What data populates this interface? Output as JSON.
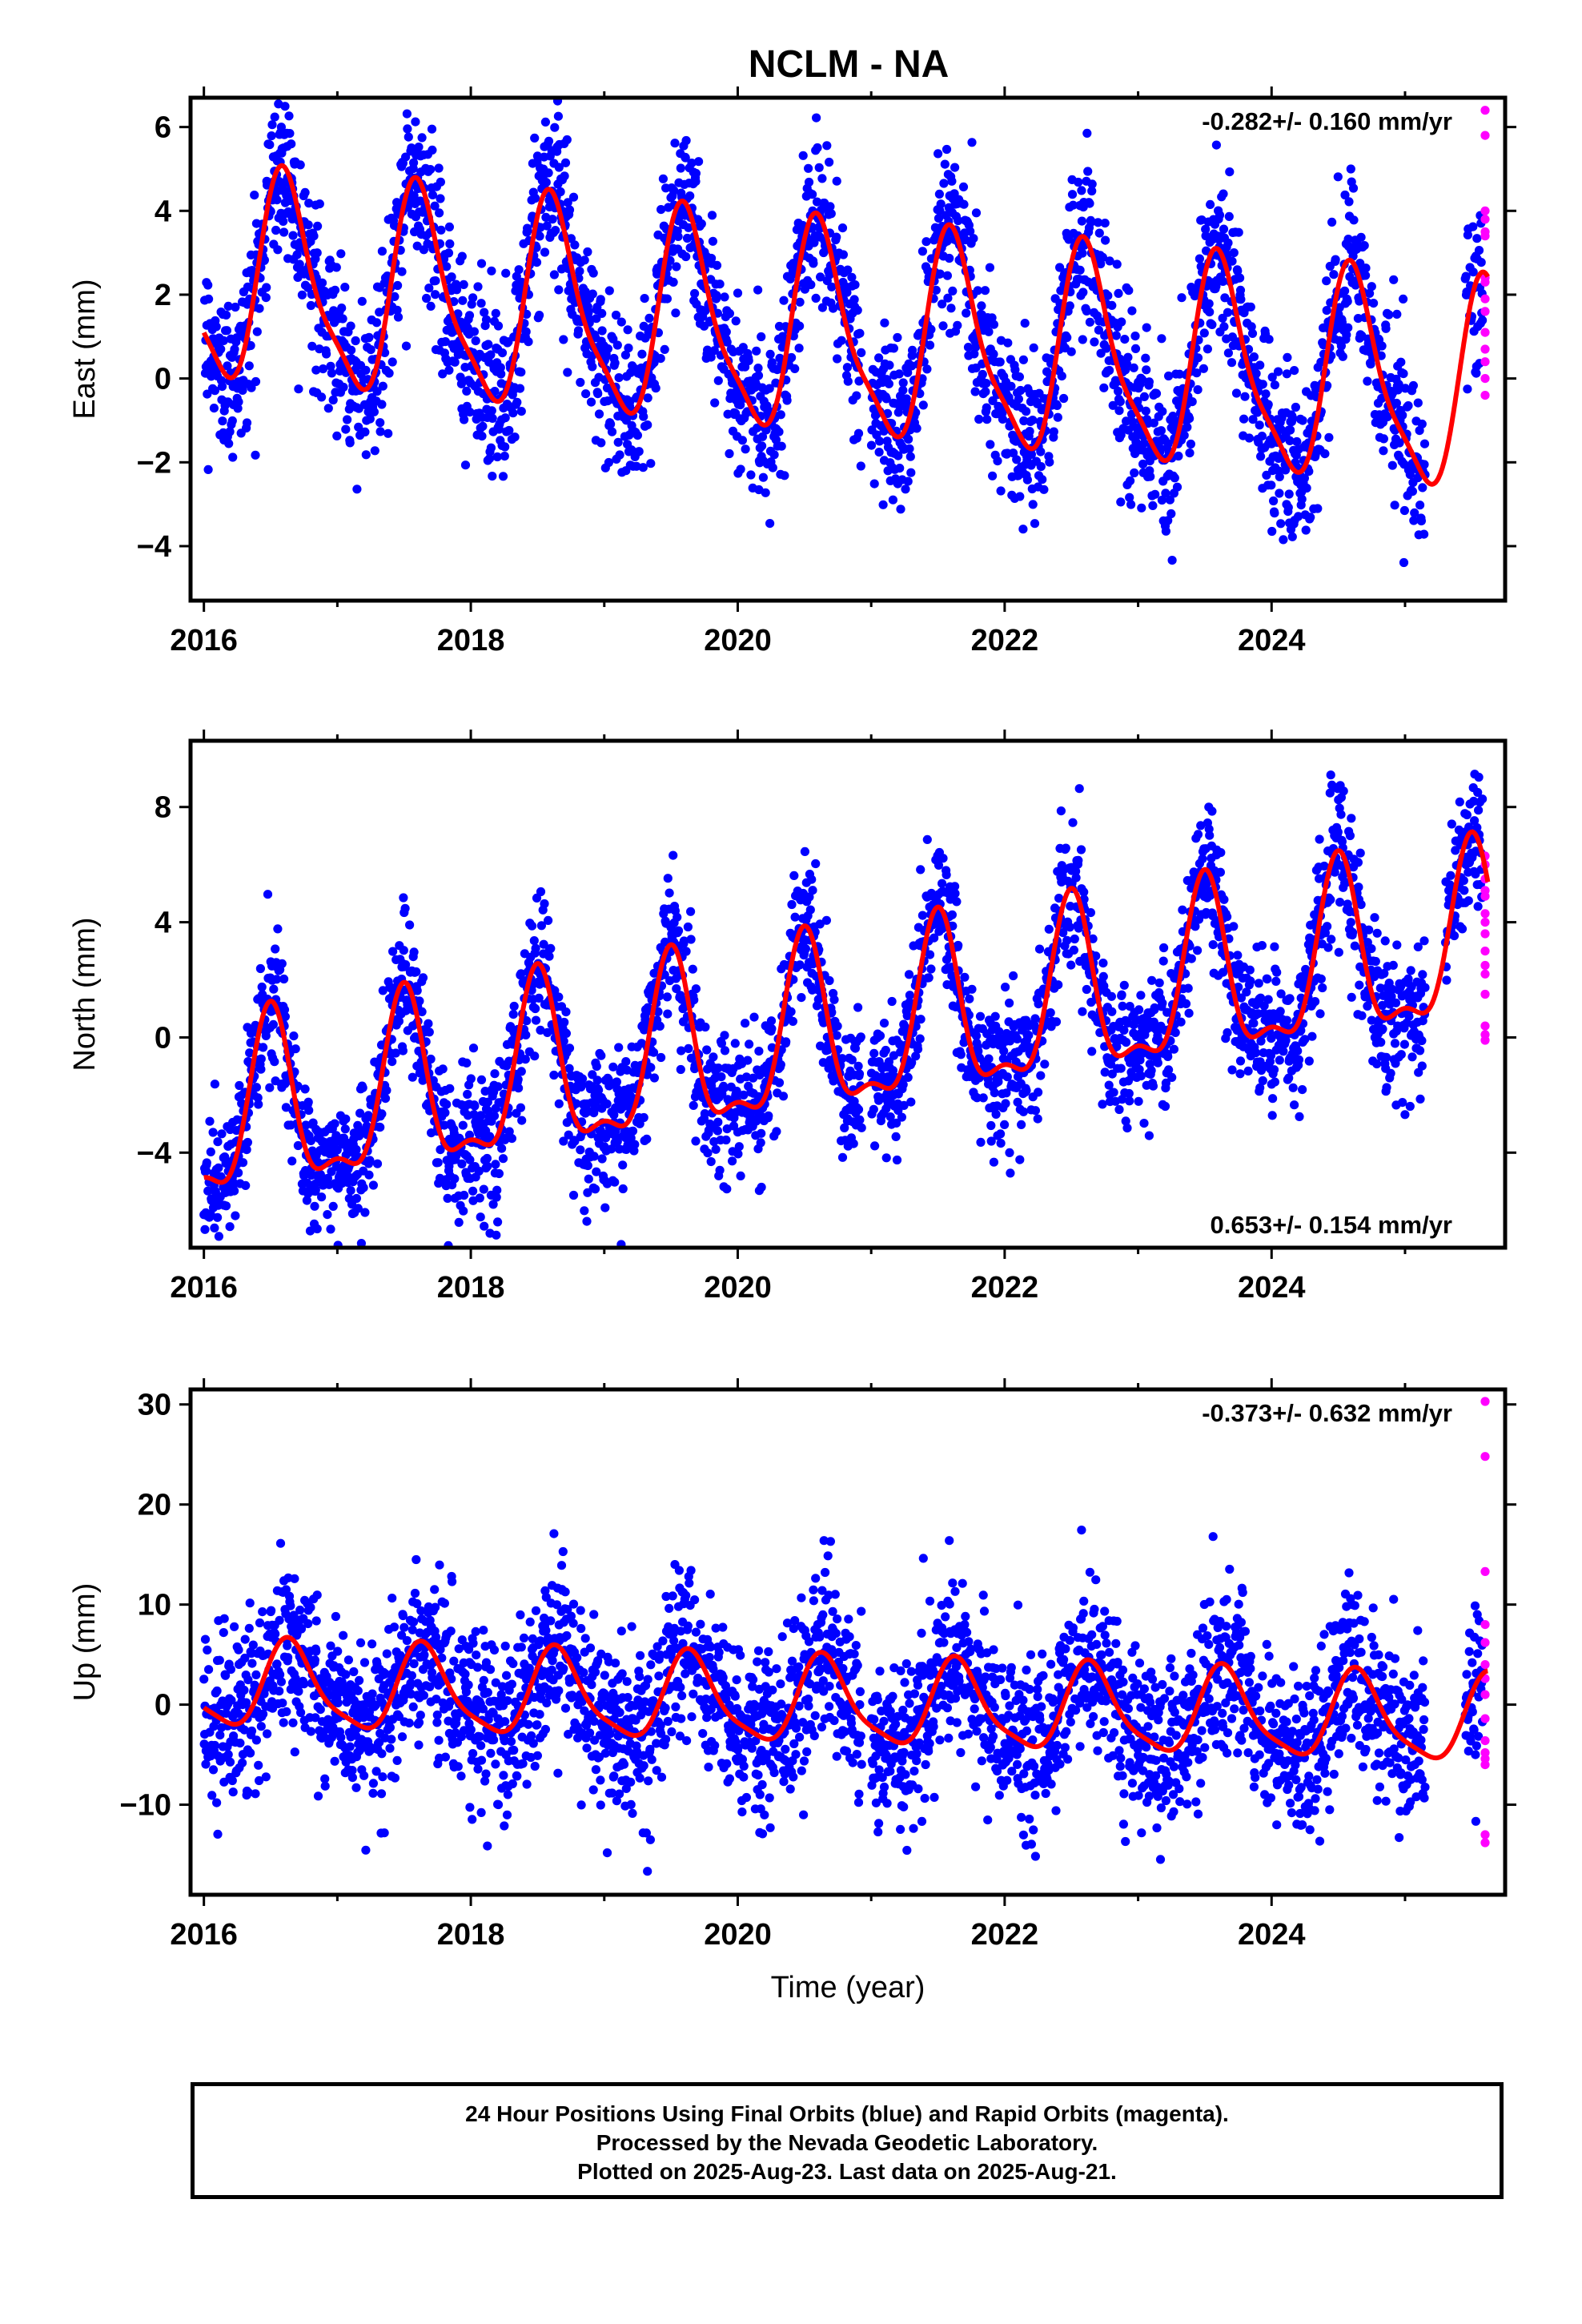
{
  "title": "NCLM - NA",
  "footer": {
    "line1": "24 Hour Positions Using Final Orbits (blue) and Rapid Orbits (magenta).",
    "line2": "Processed by the Nevada Geodetic Laboratory.",
    "line3": "Plotted on 2025-Aug-23. Last data on 2025-Aug-21."
  },
  "colors": {
    "final": "#0000ff",
    "rapid": "#ff00ff",
    "fit": "#ff0000",
    "axis": "#000000"
  },
  "chart_data": [
    {
      "type": "scatter",
      "panel": "east",
      "ylabel": "East (mm)",
      "xlabel": "",
      "rate_label": "-0.282+/- 0.160 mm/yr",
      "rate_position": "top-right",
      "xlim": [
        2015.9,
        2025.75
      ],
      "ylim": [
        -5.3,
        6.7
      ],
      "xticks": [
        2016,
        2018,
        2020,
        2022,
        2024
      ],
      "xtick_labels": [
        "2016",
        "2018",
        "2020",
        "2022",
        "2024"
      ],
      "yticks": [
        -4,
        -2,
        0,
        2,
        4,
        6
      ],
      "ytick_labels": [
        "−4",
        "−2",
        "0",
        "2",
        "4",
        "6"
      ],
      "model": {
        "offset": 0.95,
        "rate": -0.282,
        "t0": 2021.0,
        "annual_amp": 2.4,
        "annual_peak": 0.62,
        "semi_amp": 0.6,
        "semi_peak": 0.55
      },
      "scatter_sd": 1.0,
      "gaps": [
        [
          2020.93,
          2021.0
        ],
        [
          2025.15,
          2025.45
        ]
      ],
      "rapid_values": [
        6.4,
        5.8,
        4.0,
        3.8,
        3.5,
        3.4,
        2.4,
        2.3,
        1.9,
        1.6,
        1.1,
        0.7,
        0.4,
        0.0,
        -0.4
      ],
      "rapid_x": 2025.6
    },
    {
      "type": "scatter",
      "panel": "north",
      "ylabel": "North (mm)",
      "xlabel": "",
      "rate_label": "0.653+/- 0.154 mm/yr",
      "rate_position": "bottom-right",
      "xlim": [
        2015.9,
        2025.75
      ],
      "ylim": [
        -7.3,
        10.3
      ],
      "xticks": [
        2016,
        2018,
        2020,
        2022,
        2024
      ],
      "xtick_labels": [
        "2016",
        "2018",
        "2020",
        "2022",
        "2024"
      ],
      "yticks": [
        -4,
        0,
        4,
        8
      ],
      "ytick_labels": [
        "−4",
        "0",
        "4",
        "8"
      ],
      "model": {
        "offset": 0.2,
        "rate": 0.653,
        "t0": 2021.0,
        "annual_amp": 2.9,
        "annual_peak": 0.5,
        "semi_amp": 1.1,
        "semi_peak": 0.5
      },
      "scatter_sd": 1.2,
      "gaps": [
        [
          2020.93,
          2021.0
        ],
        [
          2025.15,
          2025.3
        ]
      ],
      "rapid_values": [
        6.3,
        6.0,
        5.5,
        5.1,
        4.9,
        4.3,
        4.0,
        3.6,
        3.0,
        2.5,
        2.2,
        1.5,
        0.4,
        0.1,
        -0.1
      ],
      "rapid_x": 2025.6
    },
    {
      "type": "scatter",
      "panel": "up",
      "ylabel": "Up (mm)",
      "xlabel": "Time (year)",
      "rate_label": "-0.373+/- 0.632 mm/yr",
      "rate_position": "top-right",
      "xlim": [
        2015.9,
        2025.75
      ],
      "ylim": [
        -19,
        31.5
      ],
      "xticks": [
        2016,
        2018,
        2020,
        2022,
        2024
      ],
      "xtick_labels": [
        "2016",
        "2018",
        "2020",
        "2022",
        "2024"
      ],
      "yticks": [
        -10,
        0,
        10,
        20,
        30
      ],
      "ytick_labels": [
        "−10",
        "0",
        "10",
        "20",
        "30"
      ],
      "model": {
        "offset": 0.0,
        "rate": -0.373,
        "t0": 2021.0,
        "annual_amp": 4.2,
        "annual_peak": 0.65,
        "semi_amp": 1.0,
        "semi_peak": 0.6
      },
      "scatter_sd": 4.2,
      "gaps": [
        [
          2020.93,
          2021.0
        ],
        [
          2025.15,
          2025.45
        ]
      ],
      "rapid_values": [
        30.3,
        24.8,
        13.3,
        8.0,
        6.2,
        4.0,
        2.6,
        1.0,
        -1.4,
        -3.6,
        -4.8,
        -5.4,
        -6.0,
        -13.0,
        -13.8
      ],
      "rapid_x": 2025.6
    }
  ]
}
